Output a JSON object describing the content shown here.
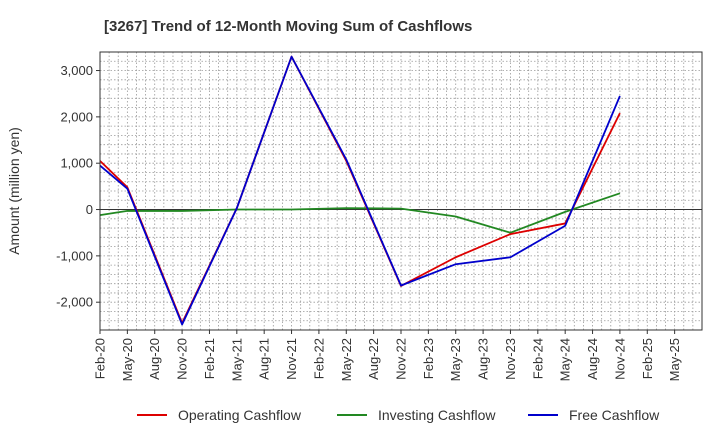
{
  "chart_data": {
    "type": "line",
    "title": "[3267]  Trend of 12-Month Moving Sum of Cashflows",
    "xlabel": "",
    "ylabel": "Amount (million yen)",
    "ylim": [
      -2600,
      3400
    ],
    "yticks": [
      -2000,
      -1000,
      0,
      1000,
      2000,
      3000
    ],
    "ytick_labels": [
      "-2,000",
      "-1,000",
      "0",
      "1,000",
      "2,000",
      "3,000"
    ],
    "categories": [
      "Feb-20",
      "May-20",
      "Aug-20",
      "Nov-20",
      "Feb-21",
      "May-21",
      "Aug-21",
      "Nov-21",
      "Feb-22",
      "May-22",
      "Aug-22",
      "Nov-22",
      "Feb-23",
      "May-23",
      "Aug-23",
      "Nov-23",
      "Feb-24",
      "May-24",
      "Aug-24",
      "Nov-24",
      "Feb-25",
      "May-25"
    ],
    "grid": true,
    "legend_position": "bottom",
    "series": [
      {
        "name": "Operating Cashflow",
        "color": "#dd0000",
        "values": [
          1050,
          480,
          null,
          -2450,
          null,
          30,
          null,
          3300,
          null,
          1050,
          null,
          -1650,
          null,
          -1030,
          null,
          -530,
          null,
          -300,
          null,
          2080,
          null,
          null
        ]
      },
      {
        "name": "Investing Cashflow",
        "color": "#228822",
        "values": [
          -120,
          -30,
          null,
          -30,
          null,
          0,
          null,
          0,
          null,
          30,
          null,
          20,
          null,
          -150,
          null,
          -500,
          null,
          -50,
          null,
          350,
          null,
          null
        ]
      },
      {
        "name": "Free Cashflow",
        "color": "#0000cc",
        "values": [
          950,
          450,
          null,
          -2480,
          null,
          30,
          null,
          3300,
          null,
          1080,
          null,
          -1640,
          null,
          -1180,
          null,
          -1030,
          null,
          -350,
          null,
          2450,
          null,
          null
        ]
      }
    ]
  }
}
